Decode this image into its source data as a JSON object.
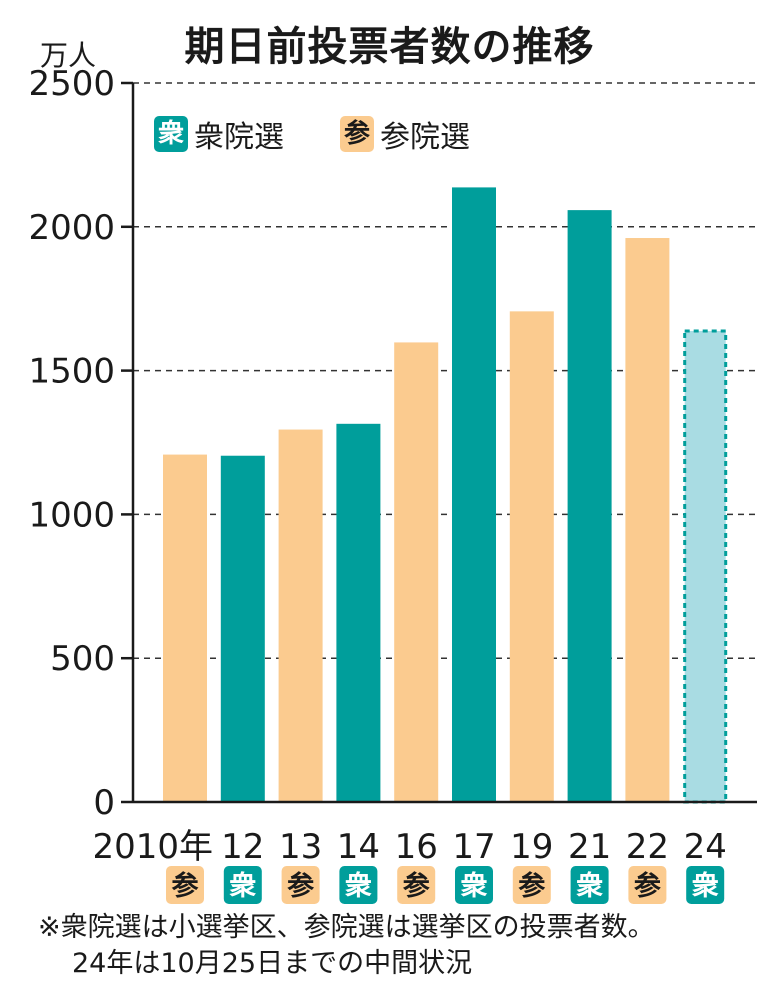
{
  "title": "期日前投票者数の推移",
  "unit": "万人",
  "legend": {
    "shu": {
      "badge": "衆",
      "label": "衆院選"
    },
    "san": {
      "badge": "参",
      "label": "参院選"
    }
  },
  "colors": {
    "shu": "#009e9b",
    "san": "#fbcb8f",
    "provisional": "#a9dce3",
    "provisional_border": "#009e9b"
  },
  "note": {
    "line1": "※衆院選は小選挙区、参院選は選挙区の投票者数。",
    "line2": "24年は10月25日までの中間状況"
  },
  "chart_data": {
    "type": "bar",
    "title": "期日前投票者数の推移",
    "ylabel": "万人",
    "ylim": [
      0,
      2500
    ],
    "yticks": [
      "0",
      "500",
      "1000",
      "1500",
      "2000",
      "2500"
    ],
    "grid": true,
    "categories": [
      "2010年",
      "12",
      "13",
      "14",
      "16",
      "17",
      "19",
      "21",
      "22",
      "24"
    ],
    "values": [
      1208,
      1204,
      1295,
      1315,
      1598,
      2137,
      1706,
      2058,
      1961,
      1643
    ],
    "election": [
      "参",
      "衆",
      "参",
      "衆",
      "参",
      "衆",
      "参",
      "衆",
      "参",
      "衆"
    ],
    "election_type": [
      "san",
      "shu",
      "san",
      "shu",
      "san",
      "shu",
      "san",
      "shu",
      "san",
      "shu"
    ],
    "provisional": [
      false,
      false,
      false,
      false,
      false,
      false,
      false,
      false,
      false,
      true
    ]
  }
}
